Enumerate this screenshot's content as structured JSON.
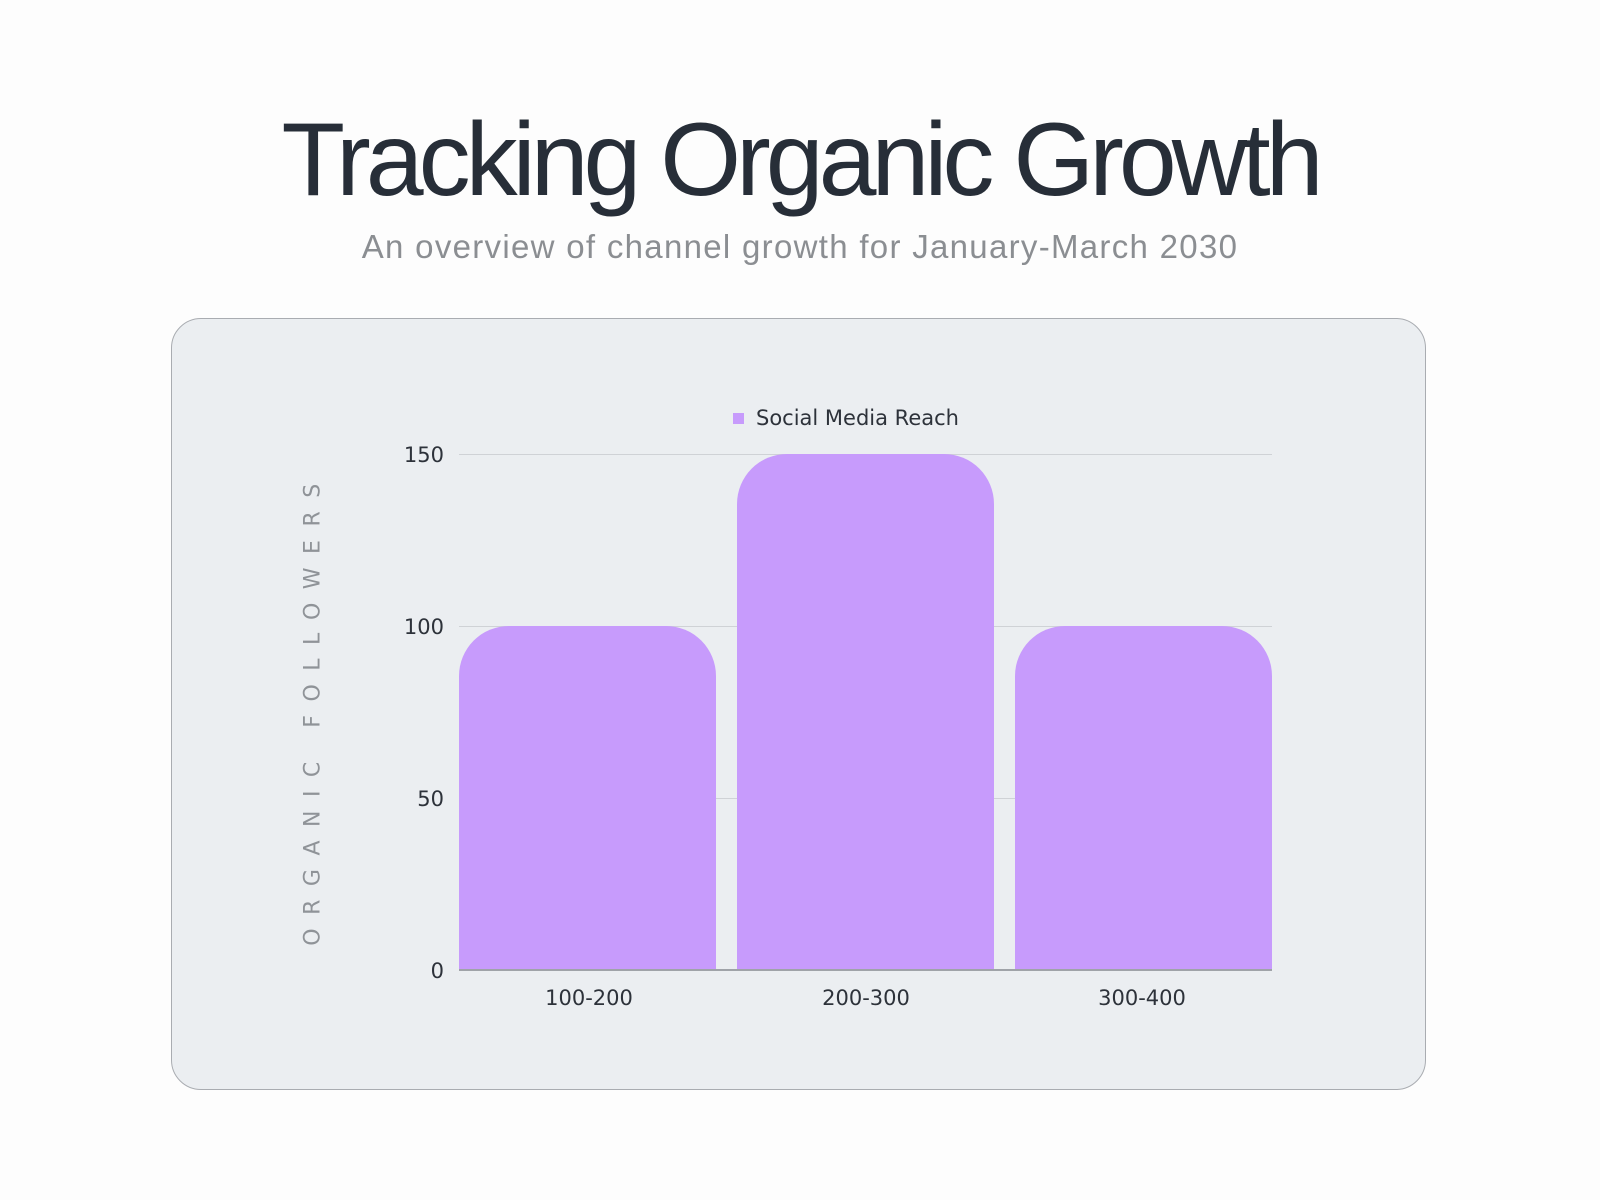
{
  "header": {
    "title": "Tracking Organic Growth",
    "subtitle": "An overview of channel growth for January-March 2030"
  },
  "colors": {
    "bar": "#c79bfc",
    "title": "#272e38",
    "subtitle": "#8b8e92",
    "card_bg": "#ebeef1"
  },
  "chart_data": {
    "type": "bar",
    "title": "",
    "categories": [
      "100-200",
      "200-300",
      "300-400"
    ],
    "series": [
      {
        "name": "Social Media Reach",
        "values": [
          100,
          150,
          100
        ]
      }
    ],
    "xlabel": "",
    "ylabel": "ORGANIC FOLLOWERS",
    "ylim": [
      0,
      150
    ],
    "yticks": [
      "0",
      "50",
      "100",
      "150"
    ],
    "grid": true,
    "legend_position": "top"
  }
}
